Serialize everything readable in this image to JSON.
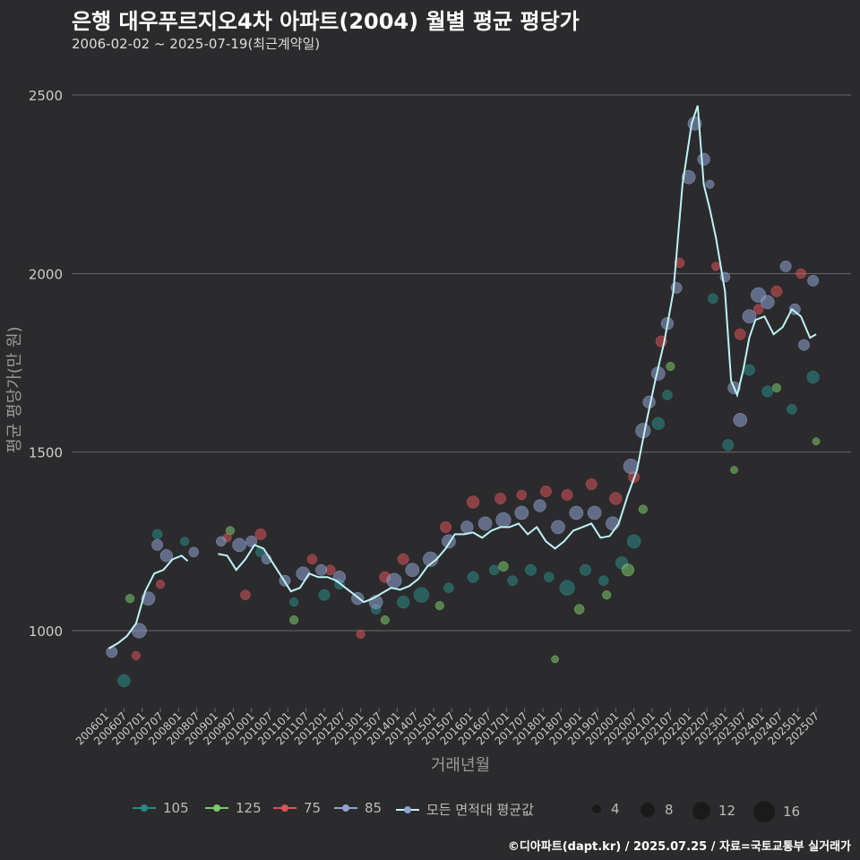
{
  "title": "은행 대우푸르지오4차 아파트(2004) 월별 평균 평당가",
  "subtitle": "2006-02-02 ~ 2025-07-19(최근계약일)",
  "caption": "©디아파트(dapt.kr) / 2025.07.25 / 자료=국토교통부 실거래가",
  "colors": {
    "background": "#2b2b2d",
    "grid": "#6a6a6c",
    "s105": "#2a8a86",
    "s125": "#7ec96b",
    "s75": "#d9535a",
    "s85": "#8fa3cf",
    "avg": "#bff3f6"
  },
  "chart_data": {
    "type": "scatter",
    "title": "은행 대우푸르지오4차 아파트(2004) 월별 평균 평당가",
    "xlabel": "거래년월",
    "ylabel": "평균 평당가(만 원)",
    "ylim": [
      800,
      2550
    ],
    "yticks": [
      1000,
      1500,
      2000,
      2500
    ],
    "xticks": [
      "200601",
      "200607",
      "200701",
      "200707",
      "200801",
      "200807",
      "200901",
      "200907",
      "201001",
      "201007",
      "201101",
      "201107",
      "201201",
      "201207",
      "201301",
      "201307",
      "201401",
      "201407",
      "201501",
      "201507",
      "201601",
      "201607",
      "201701",
      "201707",
      "201801",
      "201807",
      "201901",
      "201907",
      "202001",
      "202007",
      "202101",
      "202107",
      "202201",
      "202207",
      "202301",
      "202307",
      "202401",
      "202407",
      "202501",
      "202507"
    ],
    "legend_series": [
      {
        "name": "105",
        "color": "#2a8a86"
      },
      {
        "name": "125",
        "color": "#7ec96b"
      },
      {
        "name": "75",
        "color": "#d9535a"
      },
      {
        "name": "85",
        "color": "#8fa3cf"
      },
      {
        "name": "모든 면적대 평균값",
        "color": "#bff3f6"
      }
    ],
    "size_legend": [
      4,
      8,
      12,
      16
    ],
    "avg_series": {
      "name": "모든 면적대 평균값",
      "points": [
        [
          "2006-02",
          950
        ],
        [
          "2006-05",
          965
        ],
        [
          "2006-08",
          985
        ],
        [
          "2006-11",
          1020
        ],
        [
          "2007-02",
          1110
        ],
        [
          "2007-05",
          1160
        ],
        [
          "2007-08",
          1170
        ],
        [
          "2007-11",
          1200
        ],
        [
          "2008-02",
          1210
        ],
        [
          "2008-04",
          1195
        ]
      ],
      "points2": [
        [
          "2009-02",
          1215
        ],
        [
          "2009-05",
          1210
        ],
        [
          "2009-08",
          1170
        ],
        [
          "2009-11",
          1200
        ],
        [
          "2010-02",
          1240
        ],
        [
          "2010-05",
          1230
        ],
        [
          "2010-08",
          1190
        ],
        [
          "2010-11",
          1150
        ],
        [
          "2011-02",
          1110
        ],
        [
          "2011-05",
          1120
        ],
        [
          "2011-08",
          1160
        ],
        [
          "2011-11",
          1150
        ],
        [
          "2012-02",
          1150
        ],
        [
          "2012-05",
          1140
        ],
        [
          "2012-08",
          1120
        ],
        [
          "2012-11",
          1100
        ],
        [
          "2013-02",
          1080
        ],
        [
          "2013-05",
          1090
        ],
        [
          "2013-08",
          1105
        ],
        [
          "2013-11",
          1120
        ],
        [
          "2014-02",
          1115
        ],
        [
          "2014-05",
          1125
        ],
        [
          "2014-08",
          1145
        ],
        [
          "2014-11",
          1180
        ],
        [
          "2015-02",
          1200
        ],
        [
          "2015-05",
          1230
        ],
        [
          "2015-08",
          1270
        ],
        [
          "2015-11",
          1270
        ],
        [
          "2016-02",
          1275
        ],
        [
          "2016-05",
          1260
        ],
        [
          "2016-08",
          1280
        ],
        [
          "2016-11",
          1290
        ],
        [
          "2017-02",
          1290
        ],
        [
          "2017-05",
          1300
        ],
        [
          "2017-08",
          1270
        ],
        [
          "2017-11",
          1290
        ],
        [
          "2018-02",
          1250
        ],
        [
          "2018-05",
          1230
        ],
        [
          "2018-08",
          1250
        ],
        [
          "2018-11",
          1280
        ],
        [
          "2019-02",
          1290
        ],
        [
          "2019-05",
          1300
        ],
        [
          "2019-08",
          1260
        ],
        [
          "2019-11",
          1265
        ],
        [
          "2020-02",
          1300
        ],
        [
          "2020-05",
          1380
        ],
        [
          "2020-08",
          1450
        ],
        [
          "2020-11",
          1580
        ],
        [
          "2021-02",
          1700
        ],
        [
          "2021-05",
          1810
        ],
        [
          "2021-08",
          1950
        ],
        [
          "2021-11",
          2250
        ],
        [
          "2022-02",
          2420
        ],
        [
          "2022-04",
          2470
        ],
        [
          "2022-06",
          2250
        ],
        [
          "2022-08",
          2180
        ],
        [
          "2022-10",
          2100
        ],
        [
          "2023-01",
          1950
        ],
        [
          "2023-03",
          1700
        ],
        [
          "2023-05",
          1660
        ],
        [
          "2023-07",
          1730
        ],
        [
          "2023-09",
          1820
        ],
        [
          "2023-11",
          1870
        ],
        [
          "2024-02",
          1880
        ],
        [
          "2024-05",
          1830
        ],
        [
          "2024-08",
          1850
        ],
        [
          "2024-11",
          1900
        ],
        [
          "2025-02",
          1880
        ],
        [
          "2025-05",
          1820
        ],
        [
          "2025-07",
          1830
        ]
      ]
    },
    "scatter_series": [
      {
        "name": "105",
        "points": [
          [
            "2006-07",
            860,
            7
          ],
          [
            "2007-06",
            1270,
            5
          ],
          [
            "2008-03",
            1250,
            4
          ],
          [
            "2010-04",
            1220,
            5
          ],
          [
            "2011-03",
            1080,
            4
          ],
          [
            "2012-01",
            1100,
            6
          ],
          [
            "2012-06",
            1130,
            5
          ],
          [
            "2013-06",
            1060,
            5
          ],
          [
            "2014-03",
            1080,
            7
          ],
          [
            "2014-09",
            1100,
            9
          ],
          [
            "2015-06",
            1120,
            5
          ],
          [
            "2016-02",
            1150,
            6
          ],
          [
            "2016-09",
            1170,
            5
          ],
          [
            "2017-03",
            1140,
            5
          ],
          [
            "2017-09",
            1170,
            6
          ],
          [
            "2018-03",
            1150,
            5
          ],
          [
            "2018-09",
            1120,
            9
          ],
          [
            "2019-03",
            1170,
            6
          ],
          [
            "2019-09",
            1140,
            5
          ],
          [
            "2020-03",
            1190,
            7
          ],
          [
            "2020-07",
            1250,
            8
          ],
          [
            "2021-03",
            1580,
            7
          ],
          [
            "2021-06",
            1660,
            5
          ],
          [
            "2022-09",
            1930,
            5
          ],
          [
            "2023-02",
            1520,
            6
          ],
          [
            "2023-09",
            1730,
            6
          ],
          [
            "2024-03",
            1670,
            6
          ],
          [
            "2024-11",
            1620,
            5
          ],
          [
            "2025-06",
            1710,
            7
          ]
        ]
      },
      {
        "name": "125",
        "points": [
          [
            "2006-09",
            1090,
            4
          ],
          [
            "2009-06",
            1280,
            4
          ],
          [
            "2011-03",
            1030,
            4
          ],
          [
            "2013-09",
            1030,
            4
          ],
          [
            "2015-03",
            1070,
            4
          ],
          [
            "2016-12",
            1180,
            5
          ],
          [
            "2018-05",
            920,
            3
          ],
          [
            "2019-01",
            1060,
            5
          ],
          [
            "2019-10",
            1100,
            4
          ],
          [
            "2020-05",
            1170,
            7
          ],
          [
            "2020-10",
            1340,
            4
          ],
          [
            "2021-07",
            1740,
            4
          ],
          [
            "2023-04",
            1450,
            3
          ],
          [
            "2024-06",
            1680,
            4
          ],
          [
            "2025-07",
            1530,
            3
          ]
        ]
      },
      {
        "name": "75",
        "points": [
          [
            "2006-11",
            930,
            4
          ],
          [
            "2007-07",
            1130,
            4
          ],
          [
            "2009-05",
            1260,
            4
          ],
          [
            "2009-11",
            1100,
            5
          ],
          [
            "2010-04",
            1270,
            6
          ],
          [
            "2011-09",
            1200,
            5
          ],
          [
            "2012-03",
            1170,
            5
          ],
          [
            "2013-01",
            990,
            4
          ],
          [
            "2013-09",
            1150,
            6
          ],
          [
            "2014-03",
            1200,
            6
          ],
          [
            "2015-05",
            1290,
            6
          ],
          [
            "2016-02",
            1360,
            7
          ],
          [
            "2016-11",
            1370,
            6
          ],
          [
            "2017-06",
            1380,
            5
          ],
          [
            "2018-02",
            1390,
            6
          ],
          [
            "2018-09",
            1380,
            6
          ],
          [
            "2019-05",
            1410,
            6
          ],
          [
            "2020-01",
            1370,
            7
          ],
          [
            "2020-07",
            1430,
            6
          ],
          [
            "2021-04",
            1810,
            6
          ],
          [
            "2021-10",
            2030,
            5
          ],
          [
            "2022-10",
            2020,
            4
          ],
          [
            "2023-06",
            1830,
            6
          ],
          [
            "2023-12",
            1900,
            5
          ],
          [
            "2024-06",
            1950,
            6
          ],
          [
            "2025-02",
            2000,
            5
          ]
        ]
      },
      {
        "name": "85",
        "points": [
          [
            "2006-03",
            940,
            6
          ],
          [
            "2006-12",
            1000,
            9
          ],
          [
            "2007-03",
            1090,
            8
          ],
          [
            "2007-06",
            1240,
            6
          ],
          [
            "2007-09",
            1210,
            7
          ],
          [
            "2008-06",
            1220,
            5
          ],
          [
            "2009-03",
            1250,
            5
          ],
          [
            "2009-09",
            1240,
            8
          ],
          [
            "2010-01",
            1250,
            6
          ],
          [
            "2010-06",
            1200,
            5
          ],
          [
            "2010-12",
            1140,
            6
          ],
          [
            "2011-06",
            1160,
            8
          ],
          [
            "2011-12",
            1170,
            6
          ],
          [
            "2012-06",
            1150,
            7
          ],
          [
            "2012-12",
            1090,
            7
          ],
          [
            "2013-06",
            1080,
            8
          ],
          [
            "2013-12",
            1140,
            9
          ],
          [
            "2014-06",
            1170,
            8
          ],
          [
            "2014-12",
            1200,
            9
          ],
          [
            "2015-06",
            1250,
            8
          ],
          [
            "2015-12",
            1290,
            7
          ],
          [
            "2016-06",
            1300,
            8
          ],
          [
            "2016-12",
            1310,
            9
          ],
          [
            "2017-06",
            1330,
            8
          ],
          [
            "2017-12",
            1350,
            7
          ],
          [
            "2018-06",
            1290,
            8
          ],
          [
            "2018-12",
            1330,
            8
          ],
          [
            "2019-06",
            1330,
            8
          ],
          [
            "2019-12",
            1300,
            8
          ],
          [
            "2020-06",
            1460,
            9
          ],
          [
            "2020-10",
            1560,
            9
          ],
          [
            "2020-12",
            1640,
            7
          ],
          [
            "2021-03",
            1720,
            8
          ],
          [
            "2021-06",
            1860,
            7
          ],
          [
            "2021-09",
            1960,
            6
          ],
          [
            "2022-01",
            2270,
            8
          ],
          [
            "2022-03",
            2420,
            8
          ],
          [
            "2022-06",
            2320,
            7
          ],
          [
            "2022-08",
            2250,
            4
          ],
          [
            "2023-01",
            1990,
            5
          ],
          [
            "2023-04",
            1680,
            7
          ],
          [
            "2023-06",
            1590,
            8
          ],
          [
            "2023-09",
            1880,
            8
          ],
          [
            "2023-12",
            1940,
            9
          ],
          [
            "2024-03",
            1920,
            8
          ],
          [
            "2024-09",
            2020,
            6
          ],
          [
            "2024-12",
            1900,
            6
          ],
          [
            "2025-03",
            1800,
            6
          ],
          [
            "2025-06",
            1980,
            6
          ]
        ]
      }
    ]
  }
}
